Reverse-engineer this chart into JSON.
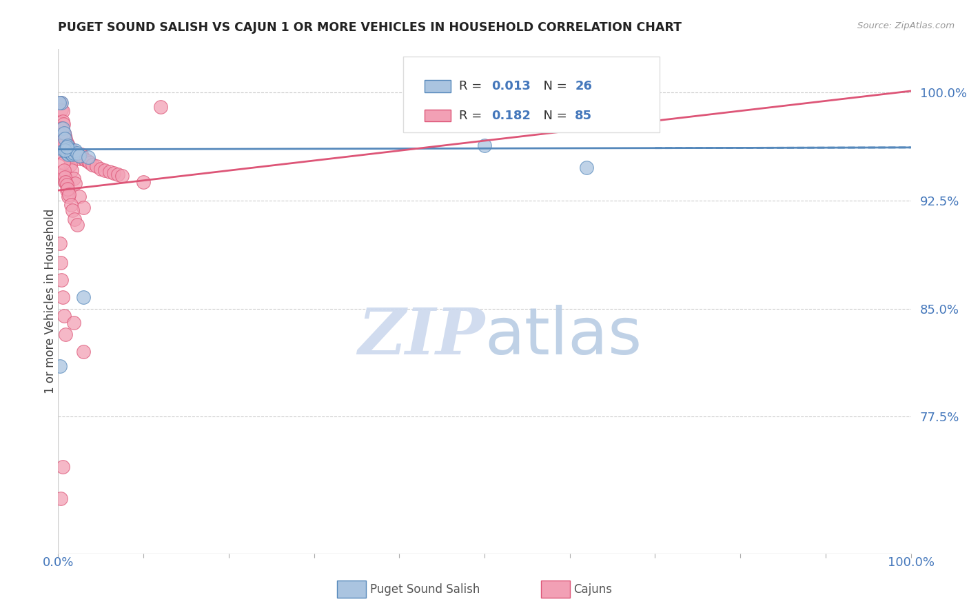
{
  "title": "PUGET SOUND SALISH VS CAJUN 1 OR MORE VEHICLES IN HOUSEHOLD CORRELATION CHART",
  "source": "Source: ZipAtlas.com",
  "ylabel": "1 or more Vehicles in Household",
  "ytick_values": [
    1.0,
    0.925,
    0.85,
    0.775
  ],
  "xlim": [
    0.0,
    1.0
  ],
  "ylim": [
    0.68,
    1.03
  ],
  "color_salish": "#aac4e0",
  "color_cajun": "#f2a0b5",
  "color_salish_line": "#5588bb",
  "color_cajun_line": "#dd5577",
  "color_blue_label": "#4477bb",
  "background_color": "#ffffff",
  "salish_x": [
    0.002,
    0.004,
    0.005,
    0.006,
    0.007,
    0.008,
    0.009,
    0.01,
    0.011,
    0.012,
    0.013,
    0.014,
    0.015,
    0.016,
    0.017,
    0.018,
    0.02,
    0.022,
    0.025,
    0.03,
    0.035,
    0.5,
    0.62,
    0.001,
    0.008,
    0.01
  ],
  "salish_y": [
    0.81,
    0.993,
    0.975,
    0.96,
    0.972,
    0.968,
    0.961,
    0.958,
    0.963,
    0.957,
    0.961,
    0.958,
    0.96,
    0.958,
    0.957,
    0.958,
    0.96,
    0.958,
    0.956,
    0.858,
    0.955,
    0.963,
    0.948,
    0.993,
    0.96,
    0.962
  ],
  "cajun_x": [
    0.003,
    0.004,
    0.005,
    0.005,
    0.006,
    0.007,
    0.007,
    0.008,
    0.008,
    0.009,
    0.009,
    0.01,
    0.01,
    0.011,
    0.011,
    0.012,
    0.013,
    0.014,
    0.015,
    0.015,
    0.016,
    0.017,
    0.018,
    0.019,
    0.02,
    0.021,
    0.022,
    0.023,
    0.025,
    0.027,
    0.028,
    0.03,
    0.032,
    0.035,
    0.037,
    0.04,
    0.045,
    0.05,
    0.055,
    0.06,
    0.065,
    0.07,
    0.075,
    0.1,
    0.004,
    0.006,
    0.008,
    0.01,
    0.012,
    0.014,
    0.016,
    0.018,
    0.02,
    0.025,
    0.03,
    0.006,
    0.008,
    0.01,
    0.012,
    0.003,
    0.004,
    0.005,
    0.006,
    0.007,
    0.008,
    0.009,
    0.01,
    0.011,
    0.013,
    0.015,
    0.017,
    0.019,
    0.022,
    0.002,
    0.003,
    0.004,
    0.005,
    0.007,
    0.009,
    0.018,
    0.03,
    0.12,
    0.005,
    0.003
  ],
  "cajun_y": [
    0.993,
    0.988,
    0.987,
    0.98,
    0.978,
    0.972,
    0.966,
    0.97,
    0.963,
    0.968,
    0.961,
    0.965,
    0.959,
    0.961,
    0.956,
    0.963,
    0.957,
    0.959,
    0.956,
    0.961,
    0.957,
    0.957,
    0.956,
    0.958,
    0.957,
    0.957,
    0.957,
    0.956,
    0.954,
    0.957,
    0.956,
    0.954,
    0.953,
    0.952,
    0.951,
    0.95,
    0.949,
    0.947,
    0.946,
    0.945,
    0.944,
    0.943,
    0.942,
    0.938,
    0.975,
    0.968,
    0.963,
    0.96,
    0.956,
    0.95,
    0.946,
    0.94,
    0.937,
    0.928,
    0.92,
    0.943,
    0.938,
    0.932,
    0.928,
    0.971,
    0.963,
    0.958,
    0.951,
    0.946,
    0.941,
    0.938,
    0.936,
    0.933,
    0.929,
    0.922,
    0.918,
    0.912,
    0.908,
    0.895,
    0.882,
    0.87,
    0.858,
    0.845,
    0.832,
    0.84,
    0.82,
    0.99,
    0.74,
    0.718
  ],
  "salish_line_x": [
    0.0,
    1.0
  ],
  "salish_line_y": [
    0.9605,
    0.9618
  ],
  "cajun_line_x": [
    0.0,
    1.0
  ],
  "cajun_line_y": [
    0.932,
    1.001
  ]
}
